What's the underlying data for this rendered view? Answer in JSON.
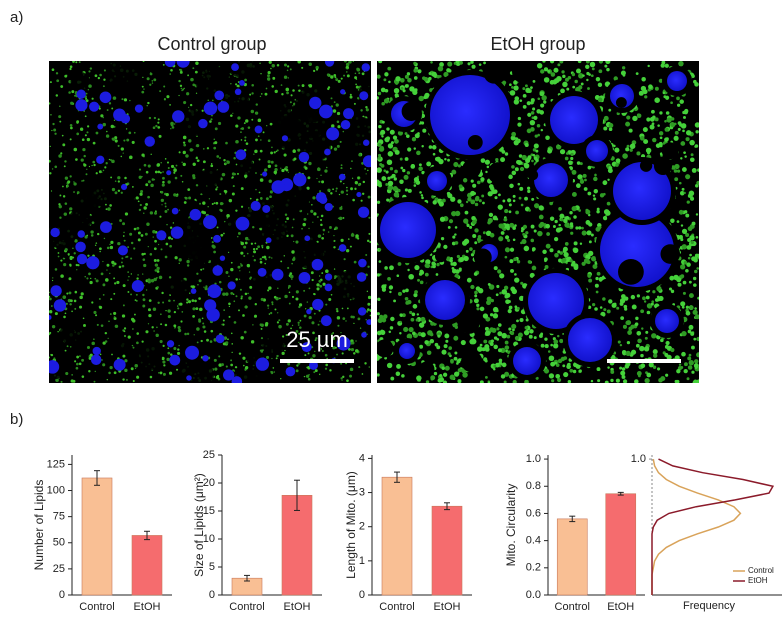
{
  "figure": {
    "panel_a": "a)",
    "panel_b": "b)",
    "images": [
      {
        "title": "Control group",
        "scale_bar": "25 µm"
      },
      {
        "title": "EtOH group"
      }
    ]
  },
  "chart_data": [
    {
      "type": "bar",
      "ylabel": "Number of Lipids",
      "categories": [
        "Control",
        "EtOH"
      ],
      "values": [
        112,
        57
      ],
      "errors": [
        7,
        4
      ],
      "colors": [
        "#f9bf94",
        "#f56c6e"
      ],
      "ylim": [
        0,
        134
      ],
      "yticks": [
        0,
        25,
        50,
        75,
        100,
        125
      ]
    },
    {
      "type": "bar",
      "ylabel": "Size of Lipids (μm²)",
      "categories": [
        "Control",
        "EtOH"
      ],
      "values": [
        3,
        17.8
      ],
      "errors": [
        0.5,
        2.7
      ],
      "colors": [
        "#f9bf94",
        "#f56c6e"
      ],
      "ylim": [
        0,
        25
      ],
      "yticks": [
        0,
        5,
        10,
        15,
        20,
        25
      ]
    },
    {
      "type": "bar",
      "ylabel": "Length of Mito. (μm)",
      "categories": [
        "Control",
        "EtOH"
      ],
      "values": [
        3.45,
        2.6
      ],
      "errors": [
        0.15,
        0.1
      ],
      "colors": [
        "#f9bf94",
        "#f56c6e"
      ],
      "ylim": [
        0,
        4.1
      ],
      "yticks": [
        0,
        1,
        2,
        3,
        4
      ]
    },
    {
      "type": "bar",
      "ylabel": "Mito. Circularity",
      "categories": [
        "Control",
        "EtOH"
      ],
      "values": [
        0.56,
        0.745
      ],
      "errors": [
        0.02,
        0.01
      ],
      "colors": [
        "#f9bf94",
        "#f56c6e"
      ],
      "ylim": [
        0,
        1.03
      ],
      "yticks": [
        {
          "value": 0,
          "label": "0.0"
        },
        0.2,
        0.4,
        0.6,
        0.8,
        {
          "value": 1,
          "label": "1.0"
        }
      ]
    },
    {
      "type": "density",
      "xlabel": "Frequency",
      "xlim": [
        0,
        1
      ],
      "ylim": [
        0,
        1.03
      ],
      "yticks": [
        {
          "value": 1,
          "label": "1.0"
        }
      ],
      "x": [
        0,
        0.05,
        0.1,
        0.15,
        0.2,
        0.25,
        0.3,
        0.35,
        0.4,
        0.45,
        0.5,
        0.55,
        0.6,
        0.65,
        0.7,
        0.75,
        0.8,
        0.85,
        0.9,
        0.95,
        1
      ],
      "series": [
        {
          "name": "Control",
          "color": "#d9a35a",
          "values": [
            0,
            0,
            0,
            0,
            0.01,
            0.02,
            0.05,
            0.11,
            0.21,
            0.35,
            0.51,
            0.63,
            0.68,
            0.63,
            0.51,
            0.35,
            0.21,
            0.11,
            0.05,
            0.02,
            0.01
          ]
        },
        {
          "name": "EtOH",
          "color": "#8b1a2a",
          "values": [
            0,
            0,
            0,
            0,
            0,
            0,
            0,
            0,
            0,
            0,
            0.01,
            0.04,
            0.13,
            0.34,
            0.64,
            0.9,
            0.93,
            0.7,
            0.39,
            0.16,
            0.05
          ]
        }
      ]
    }
  ]
}
